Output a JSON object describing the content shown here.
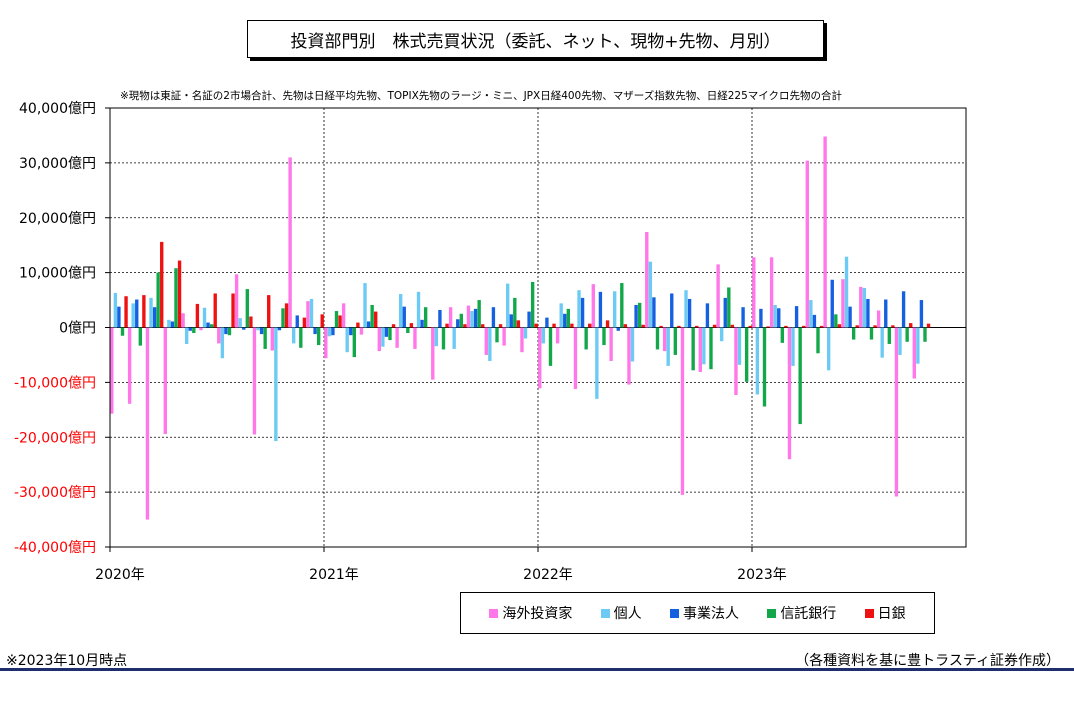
{
  "header": {
    "title": "投資部門別　株式売買状況（委託、ネット、現物+先物、月別）",
    "note": "※現物は東証・名証の2市場合計、先物は日経平均先物、TOPIX先物のラージ・ミニ、JPX日経400先物、マザーズ指数先物、日経225マイクロ先物の合計"
  },
  "footer": {
    "left_note": "※2023年10月時点",
    "right_note": "（各種資料を基に豊トラスティ証券作成）"
  },
  "colors": {
    "海外投資家": "#ff77e8",
    "個人": "#6ccbf5",
    "事業法人": "#1560e0",
    "信託銀行": "#12a84a",
    "日銀": "#ee1111"
  },
  "chart_data": {
    "type": "bar",
    "ylim": [
      -40000,
      40000
    ],
    "yticks": [
      40000,
      30000,
      20000,
      10000,
      0,
      -10000,
      -20000,
      -30000,
      -40000
    ],
    "ytick_labels": [
      "40,000億円",
      "30,000億円",
      "20,000億円",
      "10,000億円",
      "0億円",
      "-10,000億円",
      "-20,000億円",
      "-30,000億円",
      "-40,000億円"
    ],
    "year_labels": [
      "2020年",
      "2021年",
      "2022年",
      "2023年"
    ],
    "categories": [
      "2020-01",
      "2020-02",
      "2020-03",
      "2020-04",
      "2020-05",
      "2020-06",
      "2020-07",
      "2020-08",
      "2020-09",
      "2020-10",
      "2020-11",
      "2020-12",
      "2021-01",
      "2021-02",
      "2021-03",
      "2021-04",
      "2021-05",
      "2021-06",
      "2021-07",
      "2021-08",
      "2021-09",
      "2021-10",
      "2021-11",
      "2021-12",
      "2022-01",
      "2022-02",
      "2022-03",
      "2022-04",
      "2022-05",
      "2022-06",
      "2022-07",
      "2022-08",
      "2022-09",
      "2022-10",
      "2022-11",
      "2022-12",
      "2023-01",
      "2023-02",
      "2023-03",
      "2023-04",
      "2023-05",
      "2023-06",
      "2023-07",
      "2023-08",
      "2023-09",
      "2023-10"
    ],
    "series": [
      {
        "name": "海外投資家",
        "values": [
          -15700,
          -13900,
          -35000,
          -19400,
          2600,
          -500,
          -2900,
          9700,
          -19500,
          -4200,
          31000,
          4800,
          -5600,
          4400,
          -1300,
          -4300,
          -3700,
          -3900,
          -9500,
          3700,
          4000,
          -5000,
          -3300,
          -4500,
          -11100,
          -2900,
          -11200,
          7900,
          -6100,
          -10400,
          17400,
          -4300,
          -30500,
          -8100,
          11500,
          -12300,
          12800,
          12800,
          -24000,
          30400,
          34800,
          8800,
          7400,
          3100,
          -30800,
          -9300
        ]
      },
      {
        "name": "個人",
        "values": [
          6300,
          4400,
          5400,
          1400,
          -3000,
          3600,
          -5600,
          1700,
          -500,
          -20700,
          -2900,
          5200,
          -1600,
          -4500,
          8100,
          -3500,
          6100,
          6500,
          -3400,
          -3900,
          3000,
          -6100,
          8000,
          -2000,
          -2900,
          4400,
          6800,
          -13000,
          6600,
          -6200,
          12000,
          -7000,
          6800,
          -6700,
          -2500,
          -6800,
          -12200,
          4100,
          -7000,
          5000,
          -7800,
          12900,
          7200,
          -5500,
          -5000,
          -6600
        ]
      },
      {
        "name": "事業法人",
        "values": [
          3800,
          5100,
          3700,
          1100,
          -600,
          900,
          -1200,
          -400,
          -1200,
          -500,
          2200,
          -1200,
          -1400,
          -1400,
          1100,
          -1700,
          3800,
          1400,
          3200,
          1500,
          3400,
          3700,
          2400,
          2900,
          1800,
          2500,
          5400,
          6500,
          -600,
          4100,
          5500,
          6200,
          5200,
          4400,
          5400,
          3700,
          3400,
          3500,
          3900,
          2300,
          8700,
          3800,
          5200,
          5100,
          6600,
          5000
        ]
      },
      {
        "name": "信託銀行",
        "values": [
          -1500,
          -3300,
          10000,
          10800,
          -1000,
          600,
          -1400,
          7000,
          -3900,
          3500,
          -3700,
          -3200,
          3000,
          -5400,
          4100,
          -2300,
          -1000,
          3700,
          -4000,
          2500,
          5000,
          -2700,
          5400,
          8300,
          -7000,
          3400,
          -4000,
          -3200,
          8100,
          4500,
          -4000,
          -5000,
          -7800,
          -7600,
          7300,
          -9900,
          -14400,
          -2800,
          -17600,
          -4700,
          2400,
          -2200,
          -2200,
          -3000,
          -2600,
          -2600
        ]
      },
      {
        "name": "日銀",
        "values": [
          5700,
          5900,
          15600,
          12200,
          4300,
          6200,
          6200,
          2000,
          5900,
          4400,
          1800,
          2400,
          2200,
          900,
          2900,
          600,
          800,
          0,
          700,
          600,
          600,
          600,
          1300,
          700,
          700,
          700,
          700,
          1300,
          600,
          500,
          300,
          300,
          300,
          500,
          500,
          300,
          200,
          300,
          300,
          300,
          600,
          400,
          400,
          400,
          800,
          700
        ]
      }
    ]
  }
}
